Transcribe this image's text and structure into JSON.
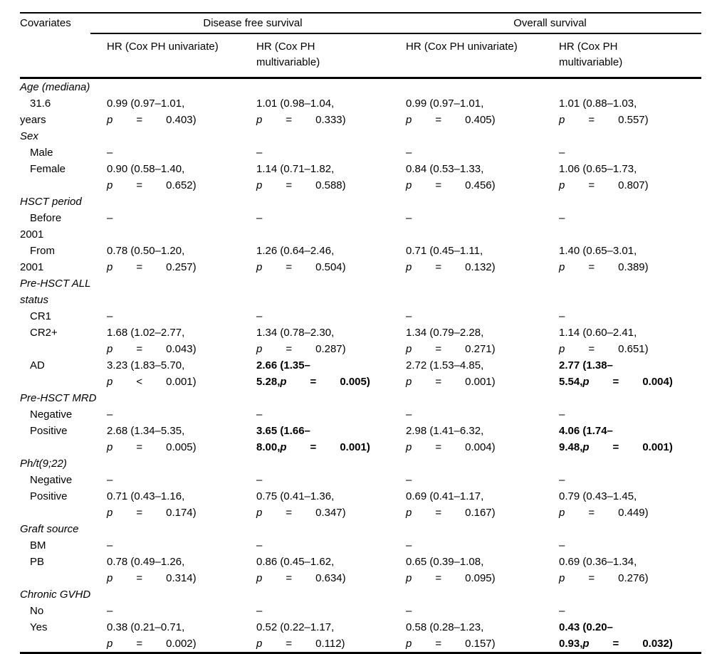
{
  "table": {
    "col1_header": "Covariates",
    "p_label": "p",
    "spanners": [
      {
        "label": "Disease free survival"
      },
      {
        "label": "Overall survival"
      }
    ],
    "sub_headers": [
      {
        "line1": "HR (Cox PH univariate)"
      },
      {
        "line1": "HR (Cox PH",
        "line2": "multivariable)"
      },
      {
        "line1": "HR (Cox PH univariate)"
      },
      {
        "line1": "HR (Cox PH",
        "line2": "multivariable)"
      }
    ],
    "sections": [
      {
        "title": "Age (mediana)",
        "rows": [
          {
            "label_line1": "31.6",
            "label_line2": "years",
            "cells": [
              {
                "line1": "0.99 (0.97–1.01,",
                "p_rel": "=",
                "p_val": "0.403)"
              },
              {
                "line1": "1.01 (0.98–1.04,",
                "p_rel": "=",
                "p_val": "0.333)"
              },
              {
                "line1": "0.99 (0.97–1.01,",
                "p_rel": "=",
                "p_val": "0.405)"
              },
              {
                "line1": "1.01 (0.88–1.03,",
                "p_rel": "=",
                "p_val": "0.557)"
              }
            ]
          }
        ]
      },
      {
        "title": "Sex",
        "rows": [
          {
            "label_line1": "Male",
            "cells": [
              {
                "dash": "–"
              },
              {
                "dash": "–"
              },
              {
                "dash": "–"
              },
              {
                "dash": "–"
              }
            ]
          },
          {
            "label_line1": "Female",
            "cells": [
              {
                "line1": "0.90 (0.58–1.40,",
                "p_rel": "=",
                "p_val": "0.652)"
              },
              {
                "line1": "1.14 (0.71–1.82,",
                "p_rel": "=",
                "p_val": "0.588)"
              },
              {
                "line1": "0.84 (0.53–1.33,",
                "p_rel": "=",
                "p_val": "0.456)"
              },
              {
                "line1": "1.06 (0.65–1.73,",
                "p_rel": "=",
                "p_val": "0.807)"
              }
            ]
          }
        ]
      },
      {
        "title": "HSCT period",
        "rows": [
          {
            "label_line1": "Before",
            "label_line2": "2001",
            "cells": [
              {
                "dash": "–"
              },
              {
                "dash": "–"
              },
              {
                "dash": "–"
              },
              {
                "dash": "–"
              }
            ]
          },
          {
            "label_line1": "From",
            "label_line2": "2001",
            "cells": [
              {
                "line1": "0.78 (0.50–1.20,",
                "p_rel": "=",
                "p_val": "0.257)"
              },
              {
                "line1": "1.26 (0.64–2.46,",
                "p_rel": "=",
                "p_val": "0.504)"
              },
              {
                "line1": "0.71 (0.45–1.11,",
                "p_rel": "=",
                "p_val": "0.132)"
              },
              {
                "line1": "1.40 (0.65–3.01,",
                "p_rel": "=",
                "p_val": "0.389)"
              }
            ]
          }
        ]
      },
      {
        "title": "Pre-HSCT ALL status",
        "rows": [
          {
            "label_line1": "CR1",
            "cells": [
              {
                "dash": "–"
              },
              {
                "dash": "–"
              },
              {
                "dash": "–"
              },
              {
                "dash": "–"
              }
            ]
          },
          {
            "label_line1": "CR2+",
            "cells": [
              {
                "line1": "1.68 (1.02–2.77,",
                "p_rel": "=",
                "p_val": "0.043)"
              },
              {
                "line1": "1.34 (0.78–2.30,",
                "p_rel": "=",
                "p_val": "0.287)"
              },
              {
                "line1": "1.34 (0.79–2.28,",
                "p_rel": "=",
                "p_val": "0.271)"
              },
              {
                "line1": "1.14 (0.60–2.41,",
                "p_rel": "=",
                "p_val": "0.651)"
              }
            ]
          },
          {
            "label_line1": "AD",
            "cells": [
              {
                "line1": "3.23 (1.83–5.70,",
                "p_rel": "<",
                "p_val": "0.001)"
              },
              {
                "line1": "2.66 (1.35–",
                "line2_prefix": "5.28,",
                "p_rel": "=",
                "p_val": "0.005)",
                "bold": true
              },
              {
                "line1": "2.72 (1.53–4.85,",
                "p_rel": "=",
                "p_val": "0.001)"
              },
              {
                "line1": "2.77 (1.38–",
                "line2_prefix": "5.54,",
                "p_rel": "=",
                "p_val": "0.004)",
                "bold": true
              }
            ]
          }
        ]
      },
      {
        "title": "Pre-HSCT MRD",
        "rows": [
          {
            "label_line1": "Negative",
            "cells": [
              {
                "dash": "–"
              },
              {
                "dash": "–"
              },
              {
                "dash": "–"
              },
              {
                "dash": "–"
              }
            ]
          },
          {
            "label_line1": "Positive",
            "cells": [
              {
                "line1": "2.68 (1.34–5.35,",
                "p_rel": "=",
                "p_val": "0.005)"
              },
              {
                "line1": "3.65 (1.66–",
                "line2_prefix": "8.00,",
                "p_rel": "=",
                "p_val": "0.001)",
                "bold": true
              },
              {
                "line1": "2.98 (1.41–6.32,",
                "p_rel": "=",
                "p_val": "0.004)"
              },
              {
                "line1": "4.06 (1.74–",
                "line2_prefix": "9.48,",
                "p_rel": "=",
                "p_val": "0.001)",
                "bold": true
              }
            ]
          }
        ]
      },
      {
        "title": "Ph/t(9;22)",
        "rows": [
          {
            "label_line1": "Negative",
            "cells": [
              {
                "dash": "–"
              },
              {
                "dash": "–"
              },
              {
                "dash": "–"
              },
              {
                "dash": "–"
              }
            ]
          },
          {
            "label_line1": "Positive",
            "cells": [
              {
                "line1": "0.71 (0.43–1.16,",
                "p_rel": "=",
                "p_val": "0.174)"
              },
              {
                "line1": "0.75 (0.41–1.36,",
                "p_rel": "=",
                "p_val": "0.347)"
              },
              {
                "line1": "0.69 (0.41–1.17,",
                "p_rel": "=",
                "p_val": "0.167)"
              },
              {
                "line1": "0.79 (0.43–1.45,",
                "p_rel": "=",
                "p_val": "0.449)"
              }
            ]
          }
        ]
      },
      {
        "title": "Graft source",
        "rows": [
          {
            "label_line1": "BM",
            "cells": [
              {
                "dash": "–"
              },
              {
                "dash": "–"
              },
              {
                "dash": "–"
              },
              {
                "dash": "–"
              }
            ]
          },
          {
            "label_line1": "PB",
            "cells": [
              {
                "line1": "0.78 (0.49–1.26,",
                "p_rel": "=",
                "p_val": "0.314)"
              },
              {
                "line1": "0.86 (0.45–1.62,",
                "p_rel": "=",
                "p_val": "0.634)"
              },
              {
                "line1": "0.65 (0.39–1.08,",
                "p_rel": "=",
                "p_val": "0.095)"
              },
              {
                "line1": "0.69 (0.36–1.34,",
                "p_rel": "=",
                "p_val": "0.276)"
              }
            ]
          }
        ]
      },
      {
        "title": "Chronic GVHD",
        "rows": [
          {
            "label_line1": "No",
            "cells": [
              {
                "dash": "–"
              },
              {
                "dash": "–"
              },
              {
                "dash": "–"
              },
              {
                "dash": "–"
              }
            ]
          },
          {
            "label_line1": "Yes",
            "cells": [
              {
                "line1": "0.38 (0.21–0.71,",
                "p_rel": "=",
                "p_val": "0.002)"
              },
              {
                "line1": "0.52 (0.22–1.17,",
                "p_rel": "=",
                "p_val": "0.112)"
              },
              {
                "line1": "0.58 (0.28–1.23,",
                "p_rel": "=",
                "p_val": "0.157)"
              },
              {
                "line1": "0.43 (0.20–",
                "line2_prefix": "0.93,",
                "p_rel": "=",
                "p_val": "0.032)",
                "bold": true
              }
            ]
          }
        ]
      }
    ]
  }
}
